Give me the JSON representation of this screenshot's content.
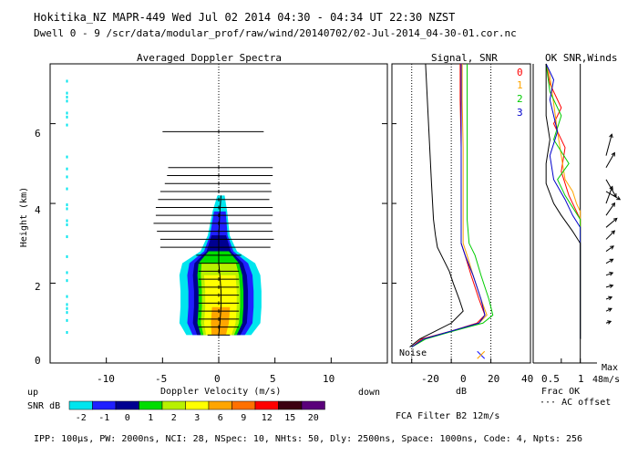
{
  "header": {
    "line1": "Hokitika_NZ  MAPR-449  Wed Jul 02 2014 04:30 - 04:34 UT 22:30 NZST",
    "line2": "Dwell  0 - 9  /scr/data/modular_prof/raw/wind/20140702/02-Jul-2014_04-30-01.cor.nc"
  },
  "panels": {
    "spectra_title": "Averaged Doppler Spectra",
    "signal_title": "Signal, SNR",
    "ok_title": "OK SNR,Winds"
  },
  "beams": {
    "labels": [
      "0",
      "1",
      "2",
      "3"
    ],
    "colors": [
      "#ff0000",
      "#ffa500",
      "#00cc00",
      "#0000cc"
    ]
  },
  "axes": {
    "ylabel": "Height (km)",
    "yticks": [
      "0",
      "2",
      "4",
      "6"
    ],
    "xticks_spectra": [
      "-10",
      "-5",
      "0",
      "5",
      "10"
    ],
    "xlabel_spectra": "Doppler Velocity (m/s)",
    "up": "up",
    "down": "down",
    "xticks_signal": [
      "-20",
      "0",
      "20",
      "40"
    ],
    "xlabel_signal": "dB",
    "noise": "Noise",
    "xticks_ok": [
      "0.5",
      "1"
    ],
    "frac_ok": "Frac OK",
    "ac_offset": "··· AC offset",
    "max_label": "Max",
    "max_value": "48m/s"
  },
  "snr_legend": {
    "label": "SNR dB",
    "values": [
      "-2",
      "-1",
      "0",
      "1",
      "2",
      "3",
      "6",
      "9",
      "12",
      "15",
      "20"
    ],
    "colors": [
      "#00e5ee",
      "#2020ff",
      "#000090",
      "#00dd00",
      "#b8f000",
      "#ffff00",
      "#ffa500",
      "#ff7000",
      "#ff0000",
      "#3c0010",
      "#5a007a"
    ]
  },
  "fca_filter": "FCA Filter B2 12m/s",
  "footer": "IPP: 100μs,  PW: 2000ns,  NCI:  28,  NSpec: 10, NHts: 50,  Dly: 2500ns,  Space: 1000ns,  Code: 4,  Npts: 256",
  "chart_data": [
    {
      "type": "heatmap",
      "title": "Averaged Doppler Spectra",
      "xlabel": "Doppler Velocity (m/s)",
      "ylabel": "Height (km)",
      "xlim": [
        -15,
        15
      ],
      "ylim": [
        0,
        7.5
      ],
      "profile": [
        {
          "h": 0.7,
          "v": 0.0,
          "w": 0.8
        },
        {
          "h": 1.0,
          "v": 0.1,
          "w": 1.0
        },
        {
          "h": 1.4,
          "v": 0.2,
          "w": 1.0
        },
        {
          "h": 1.8,
          "v": 0.2,
          "w": 1.0
        },
        {
          "h": 2.2,
          "v": 0.1,
          "w": 1.0
        },
        {
          "h": 2.5,
          "v": 0.0,
          "w": 0.9
        },
        {
          "h": 2.8,
          "v": 0.0,
          "w": 0.5
        },
        {
          "h": 3.2,
          "v": 0.0,
          "w": 0.3
        },
        {
          "h": 3.8,
          "v": 0.1,
          "w": 0.2
        },
        {
          "h": 4.2,
          "v": 0.2,
          "w": 0.1
        }
      ],
      "error_bars": [
        {
          "h": 5.8,
          "lo": -5.0,
          "hi": 4.0
        },
        {
          "h": 4.9,
          "lo": -4.5,
          "hi": 4.8
        },
        {
          "h": 4.7,
          "lo": -4.6,
          "hi": 4.8
        },
        {
          "h": 4.5,
          "lo": -4.8,
          "hi": 4.6
        },
        {
          "h": 4.3,
          "lo": -5.2,
          "hi": 4.7
        },
        {
          "h": 4.1,
          "lo": -5.4,
          "hi": 4.5
        },
        {
          "h": 3.9,
          "lo": -5.6,
          "hi": 4.8
        },
        {
          "h": 3.7,
          "lo": -5.6,
          "hi": 4.8
        },
        {
          "h": 3.5,
          "lo": -5.8,
          "hi": 4.7
        },
        {
          "h": 3.3,
          "lo": -5.5,
          "hi": 4.8
        },
        {
          "h": 3.1,
          "lo": -5.2,
          "hi": 4.9
        },
        {
          "h": 2.9,
          "lo": -5.2,
          "hi": 4.6
        },
        {
          "h": 2.7,
          "lo": -2.0,
          "hi": 2.0
        },
        {
          "h": 2.5,
          "lo": -1.8,
          "hi": 1.8
        },
        {
          "h": 2.3,
          "lo": -1.8,
          "hi": 1.8
        },
        {
          "h": 2.1,
          "lo": -1.8,
          "hi": 1.8
        },
        {
          "h": 1.9,
          "lo": -1.8,
          "hi": 1.8
        },
        {
          "h": 1.7,
          "lo": -1.8,
          "hi": 1.8
        },
        {
          "h": 1.5,
          "lo": -1.8,
          "hi": 1.8
        },
        {
          "h": 1.3,
          "lo": -1.8,
          "hi": 1.8
        },
        {
          "h": 1.1,
          "lo": -1.8,
          "hi": 1.8
        },
        {
          "h": 0.9,
          "lo": -1.8,
          "hi": 1.8
        },
        {
          "h": 0.7,
          "lo": -1.0,
          "hi": 1.0
        }
      ]
    },
    {
      "type": "line",
      "title": "Signal, SNR",
      "xlabel": "dB",
      "xlim": [
        -30,
        40
      ],
      "ylim": [
        0,
        7.5
      ],
      "series": [
        {
          "name": "0",
          "color": "#ff0000",
          "points": [
            [
              -20,
              0.4
            ],
            [
              -15,
              0.6
            ],
            [
              0,
              0.8
            ],
            [
              13,
              1.0
            ],
            [
              17,
              1.2
            ],
            [
              14,
              1.6
            ],
            [
              10,
              2.2
            ],
            [
              7,
              2.7
            ],
            [
              5,
              3.0
            ],
            [
              5,
              3.6
            ],
            [
              5,
              4.4
            ],
            [
              5,
              5.4
            ],
            [
              4.5,
              6.6
            ],
            [
              4.5,
              7.5
            ]
          ]
        },
        {
          "name": "1",
          "color": "#ffa500",
          "points": [
            [
              -20,
              0.4
            ],
            [
              -14,
              0.6
            ],
            [
              0,
              0.8
            ],
            [
              14,
              1.0
            ],
            [
              18,
              1.2
            ],
            [
              15,
              1.6
            ],
            [
              11,
              2.2
            ],
            [
              8,
              2.7
            ],
            [
              6,
              3.0
            ],
            [
              6,
              3.6
            ],
            [
              6,
              4.4
            ],
            [
              6,
              5.4
            ],
            [
              5.5,
              6.6
            ],
            [
              5.5,
              7.5
            ]
          ]
        },
        {
          "name": "2",
          "color": "#00cc00",
          "points": [
            [
              -20,
              0.4
            ],
            [
              -13,
              0.6
            ],
            [
              1,
              0.8
            ],
            [
              16,
              1.0
            ],
            [
              21,
              1.2
            ],
            [
              19,
              1.6
            ],
            [
              15,
              2.2
            ],
            [
              12,
              2.7
            ],
            [
              9,
              3.0
            ],
            [
              8,
              3.6
            ],
            [
              8,
              4.4
            ],
            [
              8,
              5.4
            ],
            [
              8,
              6.6
            ],
            [
              8,
              7.5
            ]
          ]
        },
        {
          "name": "3",
          "color": "#0000cc",
          "points": [
            [
              -20,
              0.4
            ],
            [
              -14,
              0.6
            ],
            [
              0,
              0.8
            ],
            [
              14,
              1.0
            ],
            [
              17,
              1.2
            ],
            [
              15,
              1.6
            ],
            [
              11,
              2.2
            ],
            [
              7,
              2.7
            ],
            [
              5,
              3.0
            ],
            [
              5,
              3.6
            ],
            [
              5,
              4.4
            ],
            [
              5,
              5.4
            ],
            [
              5,
              6.6
            ],
            [
              5,
              7.5
            ]
          ]
        },
        {
          "name": "noise",
          "color": "#000000",
          "points": [
            [
              -21,
              0.4
            ],
            [
              -16,
              0.6
            ],
            [
              -8,
              0.8
            ],
            [
              0,
              1.0
            ],
            [
              6,
              1.3
            ],
            [
              4,
              1.6
            ],
            [
              1,
              2.0
            ],
            [
              -1,
              2.3
            ],
            [
              -4,
              2.6
            ],
            [
              -7,
              2.9
            ],
            [
              -8,
              3.2
            ],
            [
              -9,
              3.6
            ],
            [
              -10,
              4.5
            ],
            [
              -11,
              5.5
            ],
            [
              -12,
              6.5
            ],
            [
              -13,
              7.5
            ]
          ]
        }
      ]
    },
    {
      "type": "line",
      "title": "OK SNR,Winds",
      "xlabel": "Frac OK",
      "xlim": [
        0,
        1.2
      ],
      "ylim": [
        0,
        7.5
      ],
      "series": [
        {
          "name": "0",
          "color": "#ff0000",
          "points": [
            [
              1,
              0.6
            ],
            [
              1,
              3.6
            ],
            [
              0.9,
              3.8
            ],
            [
              0.7,
              4.2
            ],
            [
              0.5,
              4.8
            ],
            [
              0.6,
              5.4
            ],
            [
              0.3,
              6.0
            ],
            [
              0.5,
              6.4
            ],
            [
              0.2,
              7.0
            ],
            [
              0.1,
              7.5
            ]
          ]
        },
        {
          "name": "1",
          "color": "#ffa500",
          "points": [
            [
              1,
              0.6
            ],
            [
              1,
              3.8
            ],
            [
              0.9,
              4.0
            ],
            [
              0.8,
              4.3
            ],
            [
              0.6,
              4.6
            ],
            [
              0.5,
              5.2
            ],
            [
              0.4,
              5.8
            ],
            [
              0.3,
              6.5
            ],
            [
              0.2,
              7.2
            ],
            [
              0.1,
              7.5
            ]
          ]
        },
        {
          "name": "2",
          "color": "#00cc00",
          "points": [
            [
              1,
              0.6
            ],
            [
              1,
              3.6
            ],
            [
              0.8,
              3.9
            ],
            [
              0.6,
              4.2
            ],
            [
              0.4,
              4.6
            ],
            [
              0.7,
              5.0
            ],
            [
              0.3,
              5.6
            ],
            [
              0.5,
              6.2
            ],
            [
              0.2,
              6.8
            ],
            [
              0.1,
              7.5
            ]
          ]
        },
        {
          "name": "3",
          "color": "#0000cc",
          "points": [
            [
              1,
              0.6
            ],
            [
              1,
              3.4
            ],
            [
              0.8,
              3.7
            ],
            [
              0.6,
              4.1
            ],
            [
              0.3,
              4.6
            ],
            [
              0.2,
              5.2
            ],
            [
              0.4,
              5.8
            ],
            [
              0.2,
              6.6
            ],
            [
              0.3,
              7.1
            ],
            [
              0.1,
              7.5
            ]
          ]
        },
        {
          "name": "snr",
          "color": "#000000",
          "points": [
            [
              1,
              0.6
            ],
            [
              1,
              3.0
            ],
            [
              0.8,
              3.3
            ],
            [
              0.5,
              3.7
            ],
            [
              0.3,
              4.0
            ],
            [
              0.1,
              4.5
            ],
            [
              0.1,
              5.0
            ],
            [
              0.2,
              5.6
            ],
            [
              0.1,
              6.2
            ],
            [
              0.1,
              7.5
            ]
          ]
        }
      ],
      "winds": [
        {
          "h": 1.0,
          "dir": 250,
          "speed": 5
        },
        {
          "h": 1.3,
          "dir": 245,
          "speed": 6
        },
        {
          "h": 1.6,
          "dir": 250,
          "speed": 6
        },
        {
          "h": 1.9,
          "dir": 255,
          "speed": 7
        },
        {
          "h": 2.2,
          "dir": 250,
          "speed": 7
        },
        {
          "h": 2.5,
          "dir": 240,
          "speed": 8
        },
        {
          "h": 2.8,
          "dir": 235,
          "speed": 9
        },
        {
          "h": 3.1,
          "dir": 225,
          "speed": 12
        },
        {
          "h": 3.4,
          "dir": 230,
          "speed": 14
        },
        {
          "h": 3.7,
          "dir": 215,
          "speed": 15
        },
        {
          "h": 4.0,
          "dir": 200,
          "speed": 18
        },
        {
          "h": 4.3,
          "dir": 300,
          "speed": 16
        },
        {
          "h": 4.6,
          "dir": 330,
          "speed": 20
        },
        {
          "h": 4.9,
          "dir": 210,
          "speed": 17
        },
        {
          "h": 5.2,
          "dir": 195,
          "speed": 22
        }
      ]
    }
  ]
}
